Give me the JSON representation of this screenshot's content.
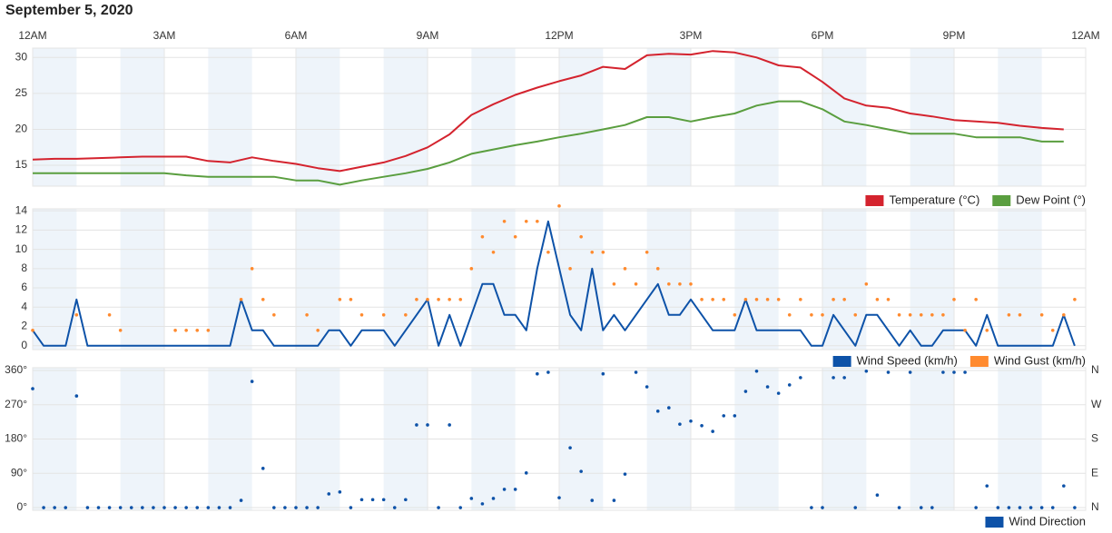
{
  "title": "September 5, 2020",
  "chart_data": [
    {
      "type": "line",
      "xlim": [
        0,
        24
      ],
      "xticks": [
        {
          "value": 0,
          "label": "12AM"
        },
        {
          "value": 3,
          "label": "3AM"
        },
        {
          "value": 6,
          "label": "6AM"
        },
        {
          "value": 9,
          "label": "9AM"
        },
        {
          "value": 12,
          "label": "12PM"
        },
        {
          "value": 15,
          "label": "3PM"
        },
        {
          "value": 18,
          "label": "6PM"
        },
        {
          "value": 21,
          "label": "9PM"
        },
        {
          "value": 24,
          "label": "12AM"
        }
      ],
      "ylim": [
        12.1,
        31.3
      ],
      "yticks": [
        15,
        20,
        25,
        30
      ],
      "grid": true,
      "x": [
        0,
        0.5,
        1,
        1.5,
        2,
        2.5,
        3,
        3.5,
        4,
        4.5,
        5,
        5.5,
        6,
        6.5,
        7,
        7.5,
        8,
        8.5,
        9,
        9.5,
        10,
        10.5,
        11,
        11.5,
        12,
        12.5,
        13,
        13.5,
        14,
        14.5,
        15,
        15.5,
        16,
        16.5,
        17,
        17.5,
        18,
        18.5,
        19,
        19.5,
        20,
        20.5,
        21,
        21.5,
        22,
        22.5,
        23,
        23.5
      ],
      "series": [
        {
          "name": "Temperature (°C)",
          "color": "#d4232e",
          "style": "line",
          "values": [
            15.8,
            15.9,
            15.9,
            16.0,
            16.1,
            16.2,
            16.2,
            16.2,
            15.6,
            15.4,
            16.1,
            15.6,
            15.2,
            14.6,
            14.2,
            14.8,
            15.4,
            16.3,
            17.5,
            19.3,
            22.0,
            23.5,
            24.8,
            25.8,
            26.7,
            27.5,
            28.7,
            28.4,
            30.3,
            30.5,
            30.4,
            30.9,
            30.7,
            30.0,
            28.9,
            28.6,
            26.6,
            24.3,
            23.3,
            23.0,
            22.2,
            21.8,
            21.3,
            21.1,
            20.9,
            20.5,
            20.2,
            20.0
          ]
        },
        {
          "name": "Dew Point (°)",
          "color": "#5a9e3f",
          "style": "line",
          "values": [
            13.9,
            13.9,
            13.9,
            13.9,
            13.9,
            13.9,
            13.9,
            13.6,
            13.4,
            13.4,
            13.4,
            13.4,
            12.9,
            12.9,
            12.3,
            12.9,
            13.4,
            13.9,
            14.5,
            15.4,
            16.6,
            17.2,
            17.8,
            18.3,
            18.9,
            19.4,
            20.0,
            20.6,
            21.7,
            21.7,
            21.1,
            21.7,
            22.2,
            23.3,
            23.9,
            23.9,
            22.8,
            21.1,
            20.6,
            20.0,
            19.4,
            19.4,
            19.4,
            18.9,
            18.9,
            18.9,
            18.3,
            18.3
          ]
        }
      ]
    },
    {
      "type": "line",
      "xlim": [
        0,
        24
      ],
      "ylim": [
        -0.4,
        14.2
      ],
      "yticks": [
        0,
        2,
        4,
        6,
        8,
        10,
        12,
        14
      ],
      "grid": true,
      "series": [
        {
          "name": "Wind Speed (km/h)",
          "color": "#0d52a8",
          "style": "line",
          "x": [
            0,
            0.25,
            0.75,
            1,
            1.25,
            4.5,
            4.75,
            5,
            5.25,
            5.5,
            6.5,
            6.75,
            7,
            7.25,
            7.5,
            8,
            8.25,
            9,
            9.25,
            9.5,
            9.75,
            10.25,
            10.5,
            10.75,
            11,
            11.25,
            11.5,
            11.75,
            12.25,
            12.5,
            12.75,
            13,
            13.25,
            13.5,
            14.25,
            14.5,
            14.75,
            15,
            15.5,
            16,
            16.25,
            16.5,
            17.5,
            17.75,
            18,
            18.25,
            18.5,
            18.75,
            19,
            19.25,
            19.75,
            20,
            20.25,
            20.5,
            20.75,
            21.25,
            21.5,
            21.75,
            22,
            23.25,
            23.5,
            23.75
          ],
          "values": [
            1.6,
            0,
            0,
            4.8,
            0,
            0,
            4.8,
            1.6,
            1.6,
            0,
            0,
            1.6,
            1.6,
            0,
            1.6,
            1.6,
            0,
            4.8,
            0,
            3.2,
            0,
            6.4,
            6.4,
            3.2,
            3.2,
            1.6,
            8,
            12.9,
            3.2,
            1.6,
            8,
            1.6,
            3.2,
            1.6,
            6.4,
            3.2,
            3.2,
            4.8,
            1.6,
            1.6,
            4.8,
            1.6,
            1.6,
            0,
            0,
            3.2,
            1.6,
            0,
            3.2,
            3.2,
            0,
            1.6,
            0,
            0,
            1.6,
            1.6,
            0,
            3.2,
            0,
            0,
            3.2,
            0
          ]
        },
        {
          "name": "Wind Gust (km/h)",
          "color": "#ff8a2e",
          "style": "markers",
          "x": [
            0,
            1,
            1.75,
            2,
            3.25,
            3.5,
            3.75,
            4,
            4.75,
            5,
            5.25,
            5.5,
            6.25,
            6.5,
            7,
            7.25,
            7.5,
            8,
            8.5,
            8.75,
            9,
            9.25,
            9.5,
            9.75,
            10,
            10.25,
            10.5,
            10.75,
            11,
            11.25,
            11.5,
            11.75,
            12,
            12.25,
            12.5,
            12.75,
            13,
            13.25,
            13.5,
            13.75,
            14,
            14.25,
            14.5,
            14.75,
            15,
            15.25,
            15.5,
            15.75,
            16,
            16.25,
            16.5,
            16.75,
            17,
            17.25,
            17.5,
            17.75,
            18,
            18.25,
            18.5,
            18.75,
            19,
            19.25,
            19.5,
            19.75,
            20,
            20.25,
            20.5,
            20.75,
            21,
            21.25,
            21.5,
            21.75,
            22.25,
            22.5,
            23,
            23.25,
            23.5,
            23.75
          ],
          "values": [
            1.6,
            3.2,
            3.2,
            1.6,
            1.6,
            1.6,
            1.6,
            1.6,
            4.8,
            8,
            4.8,
            3.2,
            3.2,
            1.6,
            4.8,
            4.8,
            3.2,
            3.2,
            3.2,
            4.8,
            4.8,
            4.8,
            4.8,
            4.8,
            8,
            11.3,
            9.7,
            12.9,
            11.3,
            12.9,
            12.9,
            9.7,
            14.5,
            8,
            11.3,
            9.7,
            9.7,
            6.4,
            8,
            6.4,
            9.7,
            8,
            6.4,
            6.4,
            6.4,
            4.8,
            4.8,
            4.8,
            3.2,
            4.8,
            4.8,
            4.8,
            4.8,
            3.2,
            4.8,
            3.2,
            3.2,
            4.8,
            4.8,
            3.2,
            6.4,
            4.8,
            4.8,
            3.2,
            3.2,
            3.2,
            3.2,
            3.2,
            4.8,
            1.6,
            4.8,
            1.6,
            3.2,
            3.2,
            3.2,
            1.6,
            3.2,
            4.8
          ]
        }
      ]
    },
    {
      "type": "scatter",
      "xlim": [
        0,
        24
      ],
      "ylim": [
        -7,
        367
      ],
      "yticks": [
        {
          "value": 0,
          "label": "0°"
        },
        {
          "value": 90,
          "label": "90°"
        },
        {
          "value": 180,
          "label": "180°"
        },
        {
          "value": 270,
          "label": "270°"
        },
        {
          "value": 360,
          "label": "360°"
        }
      ],
      "y2lim": [
        -7,
        367
      ],
      "y2ticks": [
        {
          "value": 0,
          "label": "N"
        },
        {
          "value": 90,
          "label": "E"
        },
        {
          "value": 180,
          "label": "S"
        },
        {
          "value": 270,
          "label": "W"
        },
        {
          "value": 360,
          "label": "N"
        }
      ],
      "grid": true,
      "series": [
        {
          "name": "Wind Direction",
          "color": "#0d52a8",
          "style": "markers",
          "x": [
            0,
            0.25,
            0.5,
            0.75,
            1,
            1.25,
            1.5,
            1.75,
            2,
            2.25,
            2.5,
            2.75,
            3,
            3.25,
            3.5,
            3.75,
            4,
            4.25,
            4.5,
            4.75,
            5,
            5.25,
            5.5,
            5.75,
            6,
            6.25,
            6.5,
            6.75,
            7,
            7.25,
            7.5,
            7.75,
            8,
            8.25,
            8.5,
            8.75,
            9,
            9.25,
            9.5,
            9.75,
            10,
            10.25,
            10.5,
            10.75,
            11,
            11.25,
            11.5,
            11.75,
            12,
            12.25,
            12.5,
            12.75,
            13,
            13.25,
            13.5,
            13.75,
            14,
            14.25,
            14.5,
            14.75,
            15,
            15.25,
            15.5,
            15.75,
            16,
            16.25,
            16.5,
            16.75,
            17,
            17.25,
            17.5,
            17.75,
            18,
            18.25,
            18.5,
            18.75,
            19,
            19.25,
            19.5,
            19.75,
            20,
            20.25,
            20.5,
            20.75,
            21,
            21.25,
            21.5,
            21.75,
            22,
            22.25,
            22.5,
            22.75,
            23,
            23.25,
            23.5,
            23.75
          ],
          "values": [
            312,
            0,
            0,
            0,
            293,
            0,
            0,
            0,
            0,
            0,
            0,
            0,
            0,
            0,
            0,
            0,
            0,
            0,
            0,
            19,
            331,
            103,
            0,
            0,
            0,
            0,
            0,
            36,
            41,
            0,
            21,
            21,
            21,
            0,
            21,
            217,
            217,
            0,
            217,
            0,
            24,
            10,
            24,
            48,
            48,
            91,
            351,
            355,
            26,
            157,
            95,
            19,
            351,
            19,
            88,
            355,
            317,
            253,
            262,
            219,
            227,
            215,
            200,
            241,
            241,
            305,
            358,
            317,
            300,
            322,
            341,
            0,
            0,
            341,
            341,
            0,
            358,
            33,
            355,
            0,
            355,
            0,
            0,
            355,
            355,
            355,
            0,
            57,
            0,
            0,
            0,
            0,
            0,
            0,
            57,
            0
          ]
        }
      ]
    }
  ]
}
